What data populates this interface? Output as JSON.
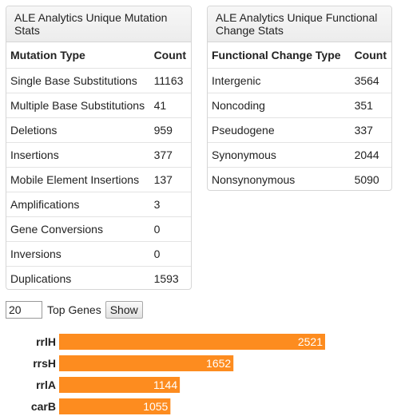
{
  "mutation_panel": {
    "title": "ALE Analytics Unique Mutation Stats",
    "headers": [
      "Mutation Type",
      "Count"
    ],
    "rows": [
      [
        "Single Base Substitutions",
        "11163"
      ],
      [
        "Multiple Base Substitutions",
        "41"
      ],
      [
        "Deletions",
        "959"
      ],
      [
        "Insertions",
        "377"
      ],
      [
        "Mobile Element Insertions",
        "137"
      ],
      [
        "Amplifications",
        "3"
      ],
      [
        "Gene Conversions",
        "0"
      ],
      [
        "Inversions",
        "0"
      ],
      [
        "Duplications",
        "1593"
      ]
    ]
  },
  "functional_panel": {
    "title": "ALE Analytics Unique Functional Change Stats",
    "headers": [
      "Functional Change Type",
      "Count"
    ],
    "rows": [
      [
        "Intergenic",
        "3564"
      ],
      [
        "Noncoding",
        "351"
      ],
      [
        "Pseudogene",
        "337"
      ],
      [
        "Synonymous",
        "2044"
      ],
      [
        "Nonsynonymous",
        "5090"
      ]
    ]
  },
  "controls": {
    "top_n_value": "20",
    "top_genes_label": "Top Genes",
    "show_button": "Show"
  },
  "chart_data": {
    "type": "bar",
    "orientation": "horizontal",
    "categories": [
      "rrlH",
      "rrsH",
      "rrlA",
      "carB"
    ],
    "values": [
      2521,
      1652,
      1144,
      1055
    ],
    "bar_color": "#fd8c1f",
    "value_label_color": "#ffffff"
  }
}
